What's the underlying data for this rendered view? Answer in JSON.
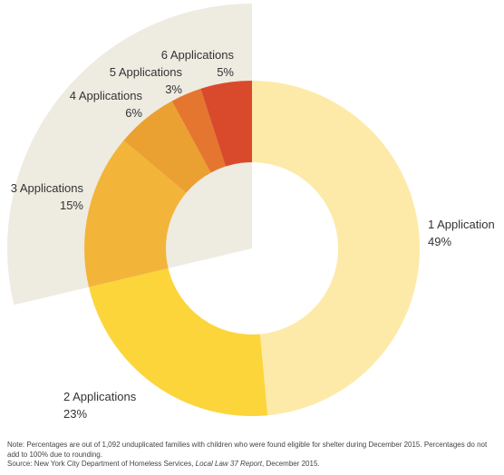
{
  "chart_data": {
    "type": "donut",
    "categories": [
      "1 Application",
      "2 Applications",
      "3 Applications",
      "4 Applications",
      "5 Applications",
      "6 Applications"
    ],
    "values": [
      49,
      23,
      15,
      6,
      3,
      5
    ],
    "value_labels": [
      "49%",
      "23%",
      "15%",
      "6%",
      "3%",
      "5%"
    ],
    "colors": [
      "#fdeaa8",
      "#fcd53b",
      "#f2b53a",
      "#eba032",
      "#e47630",
      "#d94a2c"
    ],
    "highlight_color": "#eeebe1",
    "highlight_categories": [
      "3 Applications",
      "4 Applications",
      "5 Applications",
      "6 Applications"
    ]
  },
  "notes": {
    "note": "Note: Percentages are out of 1,092 unduplicated families with children who were found eligible for shelter during December 2015. Percentages do not add to 100% due to rounding.",
    "source_prefix": "Source: New York City Department of Homeless Services, ",
    "source_title": "Local Law 37 Report",
    "source_suffix": ", December 2015."
  }
}
